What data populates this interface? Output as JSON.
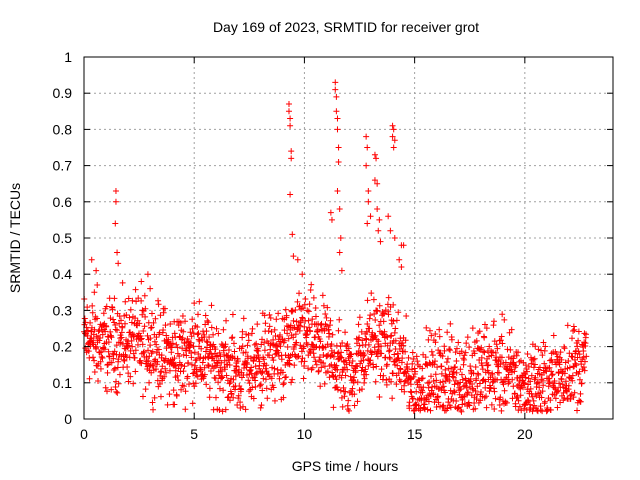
{
  "chart_data": {
    "type": "scatter",
    "title": "Day 169 of 2023, SRMTID for receiver grot",
    "xlabel": "GPS time / hours",
    "ylabel": "SRMTID / TECUs",
    "xlim": [
      0,
      24
    ],
    "ylim": [
      0,
      1
    ],
    "x_ticks": [
      0,
      5,
      10,
      15,
      20
    ],
    "y_ticks": [
      0,
      0.1,
      0.2,
      0.3,
      0.4,
      0.5,
      0.6,
      0.7,
      0.8,
      0.9,
      1
    ],
    "x_tick_labels": [
      "0",
      "5",
      "10",
      "15",
      "20"
    ],
    "y_tick_labels": [
      "0",
      "0.1",
      "0.2",
      "0.3",
      "0.4",
      "0.5",
      "0.6",
      "0.7",
      "0.8",
      "0.9",
      "1"
    ],
    "grid": true,
    "marker": "+",
    "color": "#ff0000",
    "series": [
      {
        "name": "SRMTID",
        "profile": {
          "description": "Typical level (TECU) by hour; points scatter around this level",
          "hours": [
            0,
            1,
            2,
            3,
            4,
            5,
            6,
            7,
            8,
            9,
            10,
            11,
            12,
            13,
            14,
            15,
            16,
            17,
            18,
            19,
            20,
            21,
            22,
            22.8
          ],
          "level": [
            0.23,
            0.2,
            0.22,
            0.2,
            0.17,
            0.19,
            0.16,
            0.13,
            0.16,
            0.18,
            0.23,
            0.19,
            0.12,
            0.22,
            0.2,
            0.09,
            0.12,
            0.11,
            0.13,
            0.14,
            0.09,
            0.1,
            0.14,
            0.16
          ],
          "spread": 0.06
        },
        "spikes": [
          {
            "x": 0.35,
            "y": 0.44
          },
          {
            "x": 0.55,
            "y": 0.41
          },
          {
            "x": 0.6,
            "y": 0.37
          },
          {
            "x": 1.45,
            "y": 0.63
          },
          {
            "x": 1.45,
            "y": 0.6
          },
          {
            "x": 1.42,
            "y": 0.54
          },
          {
            "x": 1.5,
            "y": 0.46
          },
          {
            "x": 1.55,
            "y": 0.43
          },
          {
            "x": 2.6,
            "y": 0.38
          },
          {
            "x": 2.9,
            "y": 0.4
          },
          {
            "x": 3.0,
            "y": 0.36
          },
          {
            "x": 4.05,
            "y": 0.04
          },
          {
            "x": 4.1,
            "y": 0.04
          },
          {
            "x": 5.0,
            "y": 0.32
          },
          {
            "x": 9.3,
            "y": 0.87
          },
          {
            "x": 9.3,
            "y": 0.85
          },
          {
            "x": 9.35,
            "y": 0.83
          },
          {
            "x": 9.35,
            "y": 0.81
          },
          {
            "x": 9.4,
            "y": 0.74
          },
          {
            "x": 9.4,
            "y": 0.72
          },
          {
            "x": 9.35,
            "y": 0.62
          },
          {
            "x": 9.45,
            "y": 0.51
          },
          {
            "x": 9.5,
            "y": 0.45
          },
          {
            "x": 9.7,
            "y": 0.44
          },
          {
            "x": 9.9,
            "y": 0.4
          },
          {
            "x": 11.4,
            "y": 0.93
          },
          {
            "x": 11.4,
            "y": 0.91
          },
          {
            "x": 11.45,
            "y": 0.89
          },
          {
            "x": 11.45,
            "y": 0.85
          },
          {
            "x": 11.5,
            "y": 0.83
          },
          {
            "x": 11.5,
            "y": 0.8
          },
          {
            "x": 11.55,
            "y": 0.75
          },
          {
            "x": 11.55,
            "y": 0.71
          },
          {
            "x": 11.5,
            "y": 0.63
          },
          {
            "x": 11.6,
            "y": 0.58
          },
          {
            "x": 11.2,
            "y": 0.57
          },
          {
            "x": 11.25,
            "y": 0.55
          },
          {
            "x": 11.65,
            "y": 0.5
          },
          {
            "x": 11.6,
            "y": 0.46
          },
          {
            "x": 11.7,
            "y": 0.41
          },
          {
            "x": 12.8,
            "y": 0.78
          },
          {
            "x": 12.85,
            "y": 0.75
          },
          {
            "x": 12.8,
            "y": 0.7
          },
          {
            "x": 12.9,
            "y": 0.63
          },
          {
            "x": 12.9,
            "y": 0.6
          },
          {
            "x": 13.0,
            "y": 0.56
          },
          {
            "x": 12.85,
            "y": 0.54
          },
          {
            "x": 13.2,
            "y": 0.73
          },
          {
            "x": 13.25,
            "y": 0.72
          },
          {
            "x": 13.2,
            "y": 0.66
          },
          {
            "x": 13.3,
            "y": 0.65
          },
          {
            "x": 13.3,
            "y": 0.58
          },
          {
            "x": 13.4,
            "y": 0.55
          },
          {
            "x": 13.35,
            "y": 0.52
          },
          {
            "x": 13.45,
            "y": 0.49
          },
          {
            "x": 14.0,
            "y": 0.81
          },
          {
            "x": 14.05,
            "y": 0.8
          },
          {
            "x": 14.0,
            "y": 0.78
          },
          {
            "x": 14.1,
            "y": 0.77
          },
          {
            "x": 14.05,
            "y": 0.75
          },
          {
            "x": 13.8,
            "y": 0.56
          },
          {
            "x": 13.9,
            "y": 0.52
          },
          {
            "x": 14.1,
            "y": 0.5
          },
          {
            "x": 14.4,
            "y": 0.48
          },
          {
            "x": 14.5,
            "y": 0.48
          },
          {
            "x": 14.3,
            "y": 0.44
          },
          {
            "x": 14.4,
            "y": 0.42
          },
          {
            "x": 18.6,
            "y": 0.27
          },
          {
            "x": 20.4,
            "y": 0.03
          },
          {
            "x": 20.5,
            "y": 0.03
          }
        ]
      }
    ]
  }
}
